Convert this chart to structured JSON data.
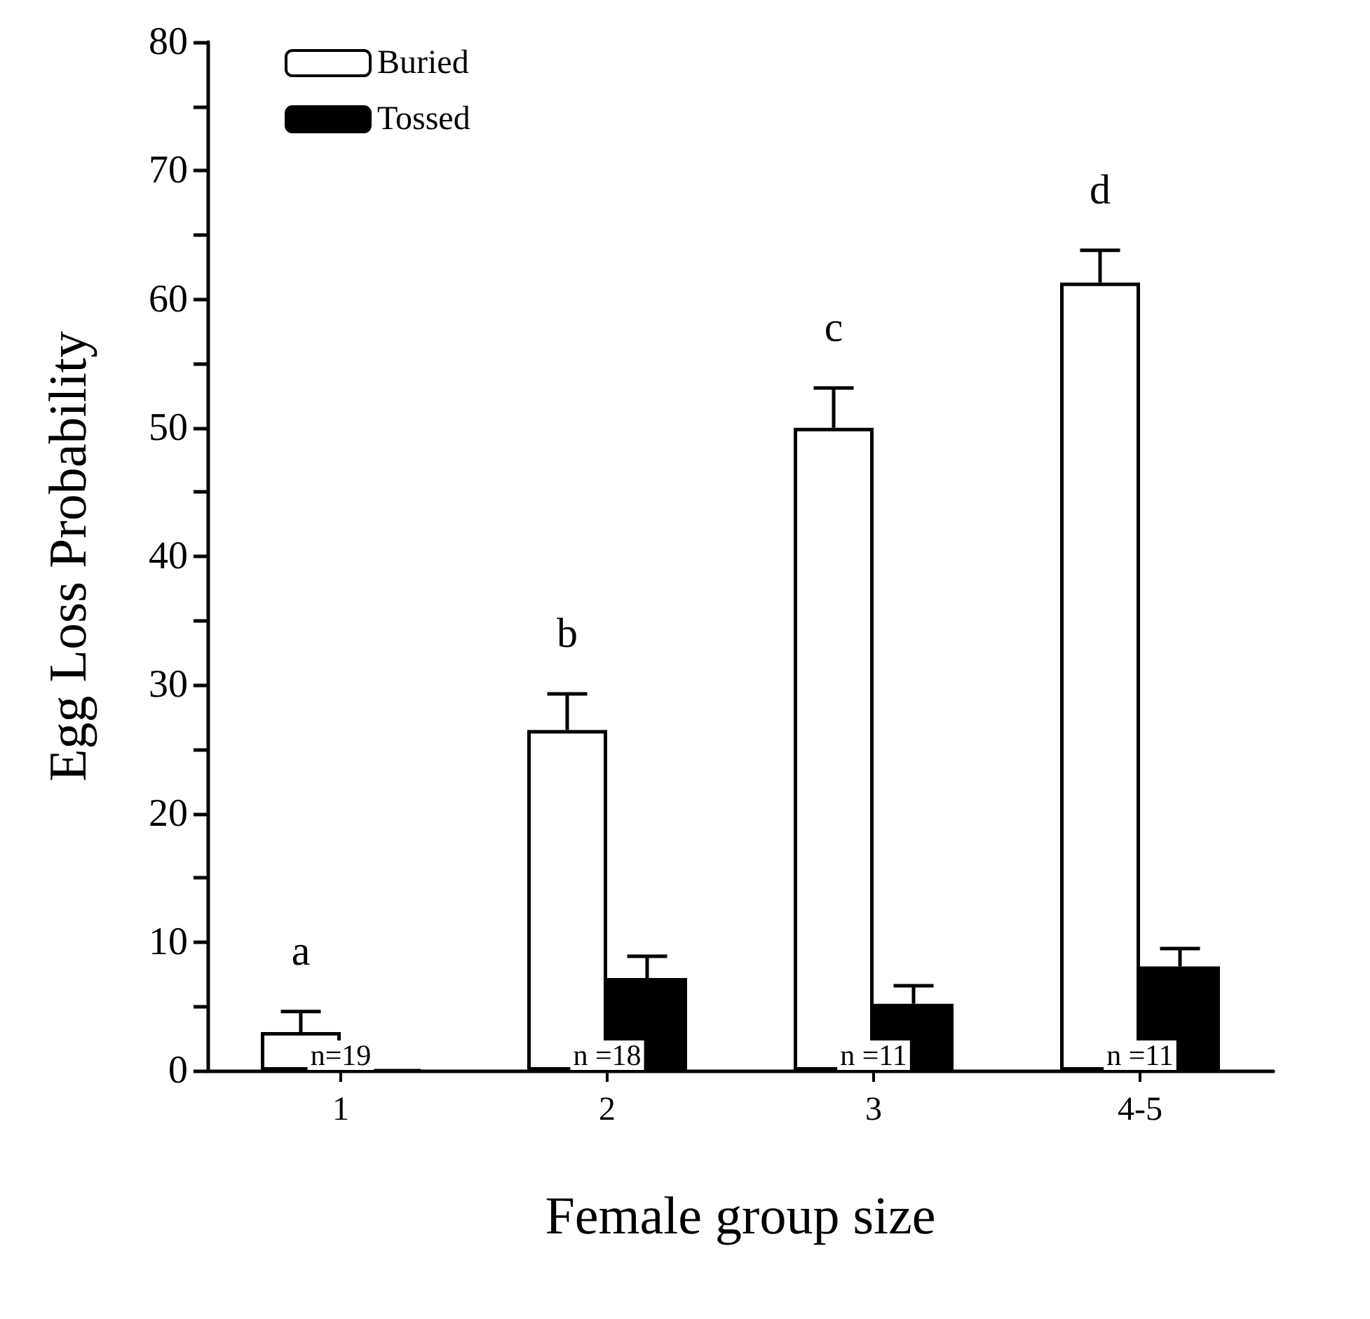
{
  "chart_data": {
    "type": "bar",
    "xlabel": "Female group size",
    "ylabel": "Egg Loss Probability",
    "categories": [
      "1",
      "2",
      "3",
      "4-5"
    ],
    "series": [
      {
        "name": "Buried",
        "color": "#ffffff",
        "values": [
          3,
          26.5,
          50,
          61.3
        ],
        "errors": [
          1.6,
          2.8,
          3.1,
          2.5
        ]
      },
      {
        "name": "Tossed",
        "color": "#000000",
        "values": [
          0,
          7.2,
          5.2,
          8.1
        ],
        "errors": [
          null,
          1.7,
          1.4,
          1.4
        ]
      }
    ],
    "ylim": [
      0,
      80
    ],
    "yticks": [
      0,
      {
        "value": 5,
        "label": null
      },
      10,
      {
        "value": 15,
        "label": null
      },
      20,
      {
        "value": 25,
        "label": null
      },
      30,
      {
        "value": 35,
        "label": null
      },
      40,
      {
        "value": 45,
        "label": null
      },
      50,
      {
        "value": 55,
        "label": null
      },
      60,
      {
        "value": 65,
        "label": null
      },
      70,
      {
        "value": 75,
        "label": null
      },
      80
    ],
    "annotations": [
      "a",
      "b",
      "c",
      "d",
      {
        "text": "n=19",
        "x": "1",
        "y": 1.2
      },
      {
        "text": "n =18",
        "x": "2",
        "y": 1.2
      },
      {
        "text": "n =11",
        "x": "3",
        "y": 1.2
      },
      {
        "text": "n =11",
        "x": "4-5",
        "y": 1.2
      }
    ],
    "legend": "top left",
    "grid": false
  }
}
